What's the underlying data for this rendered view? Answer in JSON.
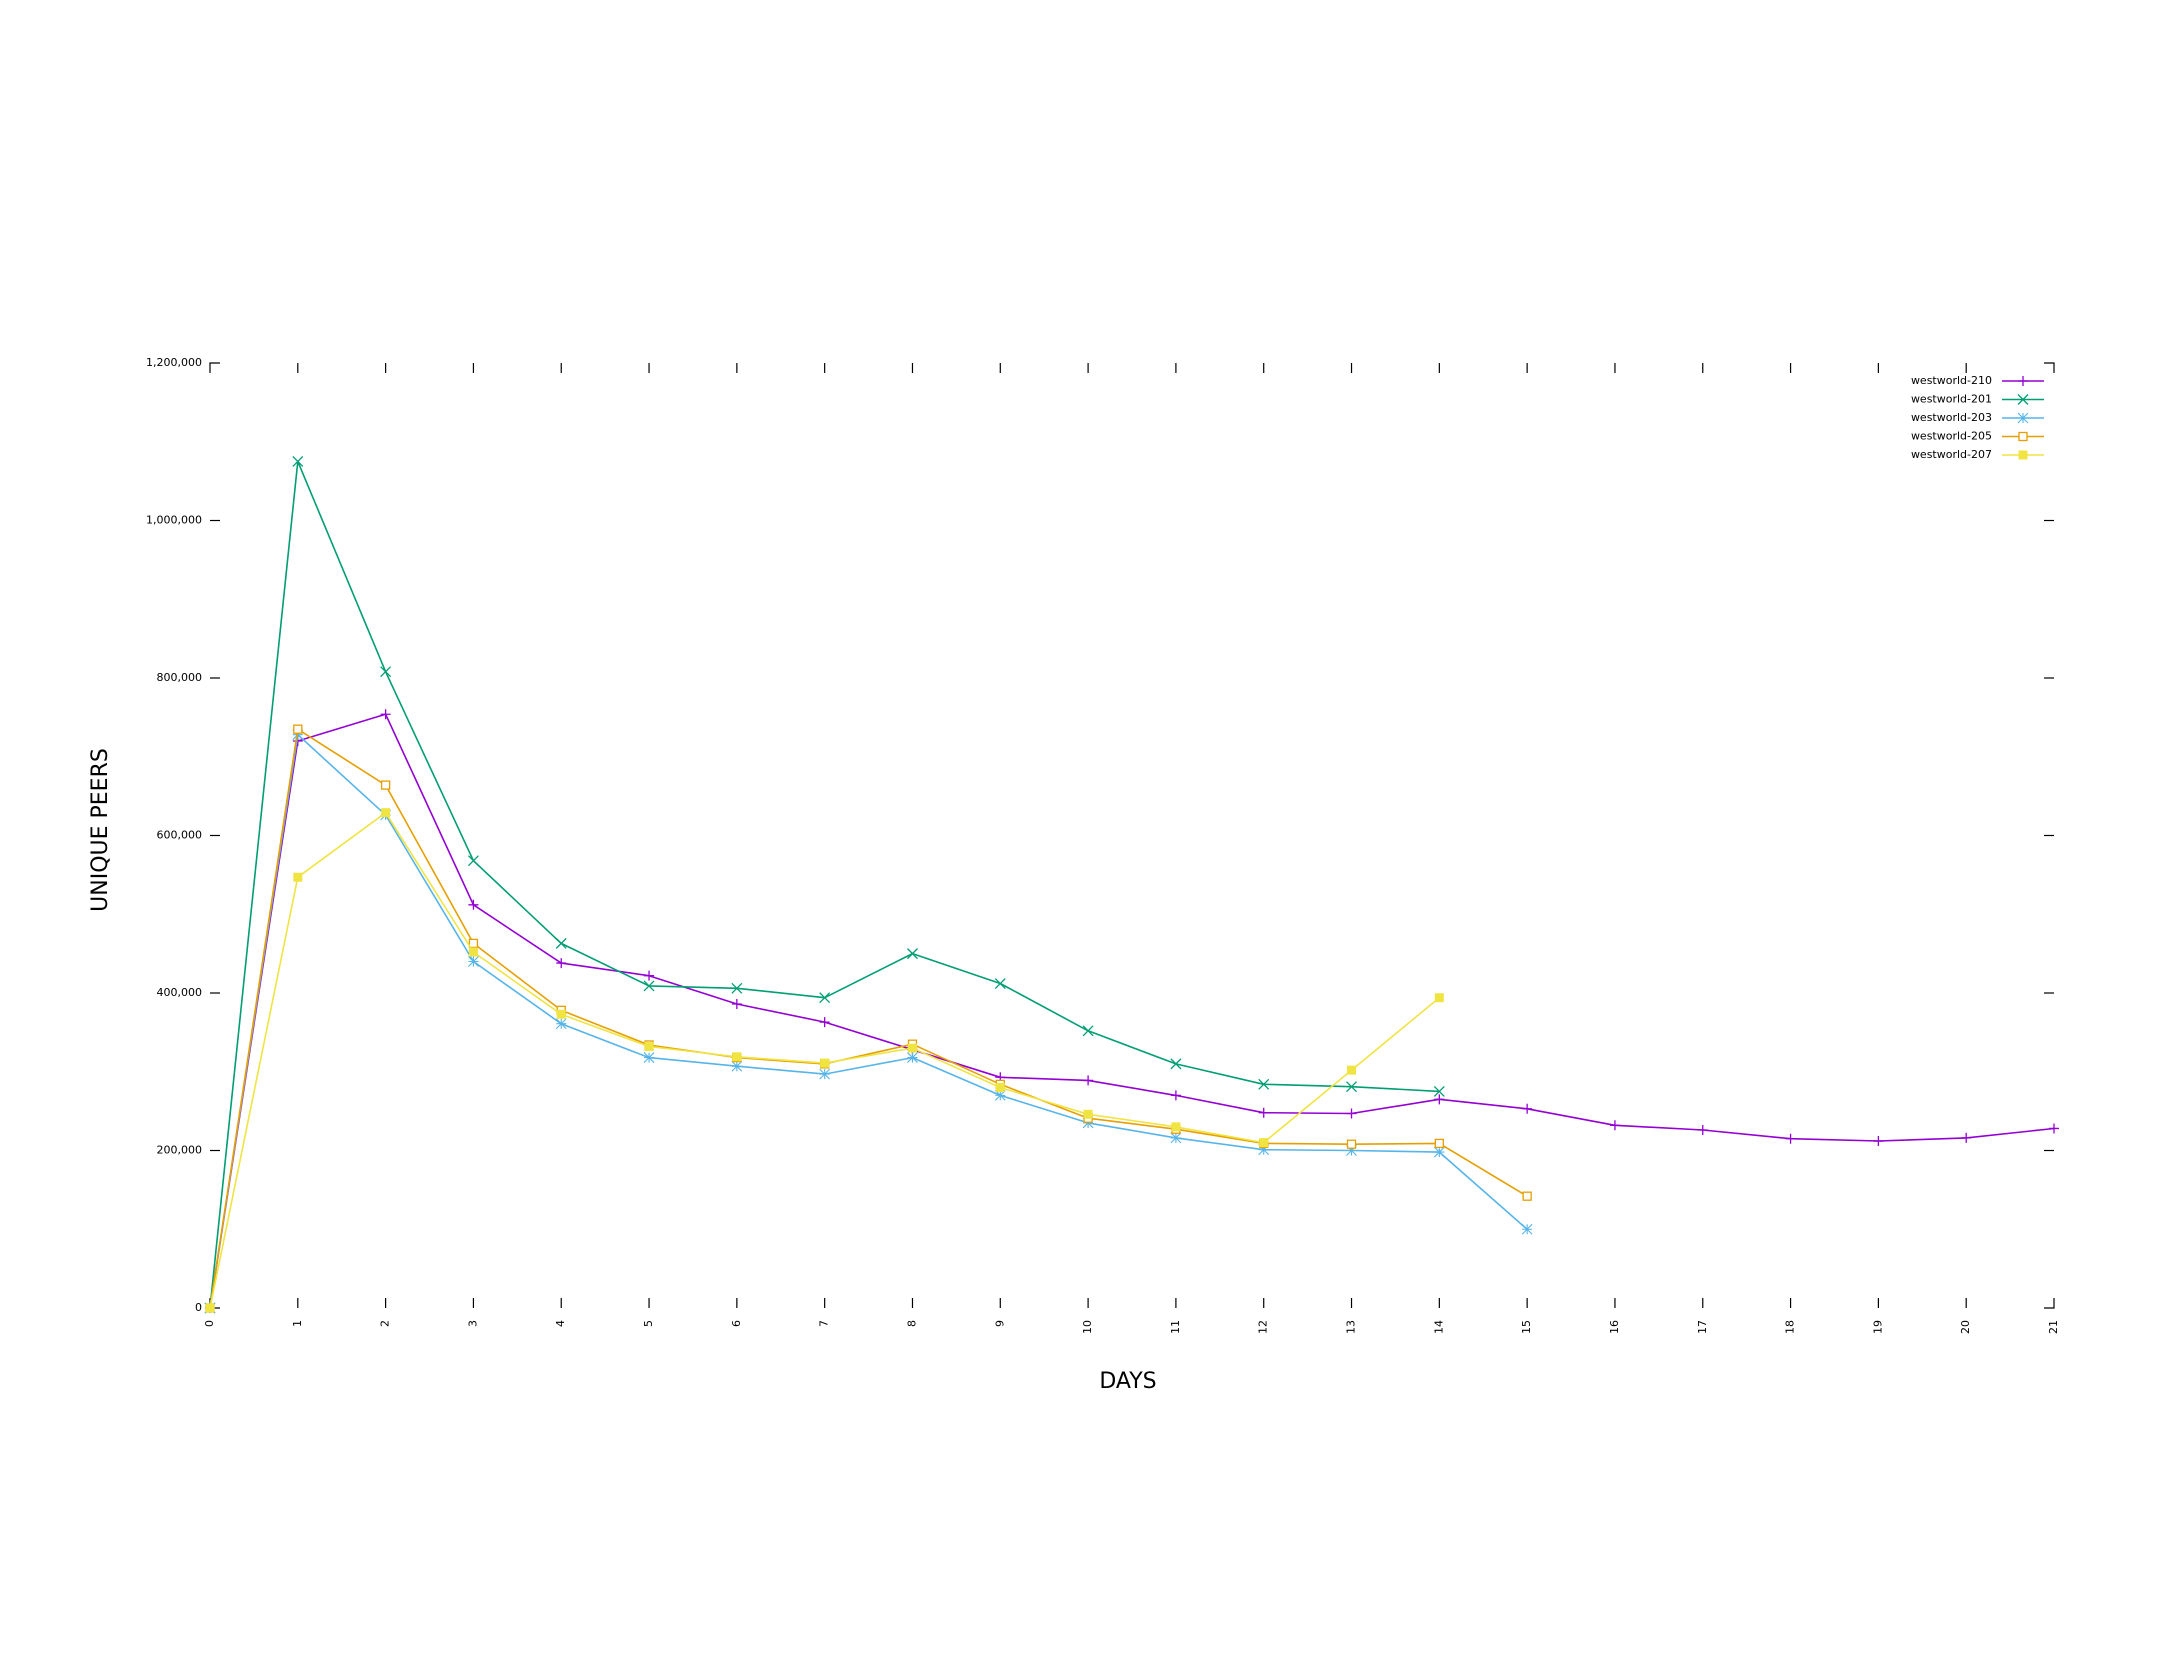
{
  "chart_data": {
    "type": "line",
    "xlabel": "DAYS",
    "ylabel": "UNIQUE PEERS",
    "xlim": [
      0,
      21
    ],
    "ylim": [
      0,
      1200000
    ],
    "x_ticks": [
      "0",
      "1",
      "2",
      "3",
      "4",
      "5",
      "6",
      "7",
      "8",
      "9",
      "10",
      "11",
      "12",
      "13",
      "14",
      "15",
      "16",
      "17",
      "18",
      "19",
      "20",
      "21"
    ],
    "y_ticks": [
      "0",
      "200,000",
      "400,000",
      "600,000",
      "800,000",
      "1,000,000",
      "1,200,000"
    ],
    "y_tick_values": [
      0,
      200000,
      400000,
      600000,
      800000,
      1000000,
      1200000
    ],
    "grid": false,
    "legend_position": "top-right",
    "series": [
      {
        "name": "westworld-210",
        "color": "#9400d3",
        "marker": "plus",
        "x": [
          0,
          1,
          2,
          3,
          4,
          5,
          6,
          7,
          8,
          9,
          10,
          11,
          12,
          13,
          14,
          15,
          16,
          17,
          18,
          19,
          20,
          21
        ],
        "y": [
          0,
          720000,
          754000,
          512000,
          438000,
          422000,
          386000,
          363000,
          328000,
          293000,
          289000,
          270000,
          248000,
          247000,
          265000,
          253000,
          232000,
          226000,
          215000,
          212000,
          216000,
          228000
        ]
      },
      {
        "name": "westworld-201",
        "color": "#009e73",
        "marker": "cross",
        "x": [
          0,
          1,
          2,
          3,
          4,
          5,
          6,
          7,
          8,
          9,
          10,
          11,
          12,
          13,
          14
        ],
        "y": [
          0,
          1075000,
          808000,
          568000,
          463000,
          409000,
          406000,
          394000,
          450000,
          412000,
          352000,
          310000,
          284000,
          281000,
          275000
        ]
      },
      {
        "name": "westworld-203",
        "color": "#56b4e9",
        "marker": "star",
        "x": [
          0,
          1,
          2,
          3,
          4,
          5,
          6,
          7,
          8,
          9,
          10,
          11,
          12,
          13,
          14,
          15
        ],
        "y": [
          0,
          728000,
          626000,
          440000,
          361000,
          318000,
          307000,
          297000,
          318000,
          270000,
          235000,
          216000,
          201000,
          200000,
          198000,
          100000
        ]
      },
      {
        "name": "westworld-205",
        "color": "#e69f00",
        "marker": "open-square",
        "x": [
          0,
          1,
          2,
          3,
          4,
          5,
          6,
          7,
          8,
          9,
          10,
          11,
          12,
          13,
          14,
          15
        ],
        "y": [
          0,
          735000,
          664000,
          463000,
          378000,
          334000,
          318000,
          310000,
          335000,
          284000,
          241000,
          227000,
          209000,
          208000,
          209000,
          142000
        ]
      },
      {
        "name": "westworld-207",
        "color": "#f0e442",
        "marker": "filled-square",
        "x": [
          0,
          1,
          2,
          3,
          4,
          5,
          6,
          7,
          8,
          9,
          10,
          11,
          12,
          13,
          14
        ],
        "y": [
          0,
          547000,
          629000,
          452000,
          373000,
          332000,
          319000,
          311000,
          330000,
          280000,
          246000,
          230000,
          210000,
          302000,
          394000
        ]
      }
    ]
  }
}
